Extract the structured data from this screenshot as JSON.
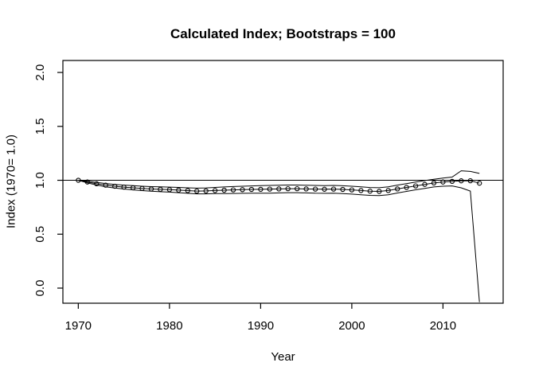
{
  "window": {
    "type": "r-graphics-plot"
  },
  "colors": {
    "foreground": "#000000",
    "background": "#ffffff"
  },
  "chart_data": {
    "type": "line",
    "title": "Calculated Index; Bootstraps = 100",
    "xlabel": "Year",
    "ylabel": "Index (1970= 1.0)",
    "x_ticks": [
      1970,
      1980,
      1990,
      2000,
      2010
    ],
    "y_ticks": [
      "0.0",
      "0.5",
      "1.0",
      "1.5",
      "2.0"
    ],
    "y_tick_values": [
      0.0,
      0.5,
      1.0,
      1.5,
      2.0
    ],
    "xlim": [
      1968.31,
      2016.6
    ],
    "ylim": [
      -0.1402,
      2.1111
    ],
    "grid": "off",
    "legend": "none",
    "reference_line_y": 1.0,
    "marker": "open-circle",
    "x": [
      1970,
      1971,
      1972,
      1973,
      1974,
      1975,
      1976,
      1977,
      1978,
      1979,
      1980,
      1981,
      1982,
      1983,
      1984,
      1985,
      1986,
      1987,
      1988,
      1989,
      1990,
      1991,
      1992,
      1993,
      1994,
      1995,
      1996,
      1997,
      1998,
      1999,
      2000,
      2001,
      2002,
      2003,
      2004,
      2005,
      2006,
      2007,
      2008,
      2009,
      2010,
      2011,
      2012,
      2013,
      2014
    ],
    "series": [
      {
        "name": "index_estimate",
        "values": [
          1.0,
          0.984,
          0.968,
          0.955,
          0.945,
          0.937,
          0.93,
          0.924,
          0.919,
          0.916,
          0.913,
          0.909,
          0.904,
          0.9,
          0.901,
          0.905,
          0.908,
          0.911,
          0.913,
          0.915,
          0.916,
          0.918,
          0.92,
          0.922,
          0.922,
          0.92,
          0.918,
          0.917,
          0.918,
          0.915,
          0.911,
          0.905,
          0.899,
          0.897,
          0.905,
          0.92,
          0.934,
          0.948,
          0.962,
          0.975,
          0.984,
          0.99,
          0.995,
          0.996,
          0.973
        ]
      },
      {
        "name": "upper_bootstrap_band",
        "values": [
          1.0,
          0.992,
          0.98,
          0.97,
          0.962,
          0.955,
          0.95,
          0.945,
          0.941,
          0.939,
          0.937,
          0.934,
          0.93,
          0.927,
          0.929,
          0.934,
          0.938,
          0.942,
          0.945,
          0.948,
          0.95,
          0.952,
          0.954,
          0.956,
          0.956,
          0.954,
          0.952,
          0.951,
          0.952,
          0.949,
          0.945,
          0.939,
          0.933,
          0.931,
          0.94,
          0.955,
          0.969,
          0.983,
          0.997,
          1.01,
          1.02,
          1.03,
          1.088,
          1.082,
          1.064
        ]
      },
      {
        "name": "lower_bootstrap_band",
        "values": [
          1.0,
          0.976,
          0.956,
          0.94,
          0.928,
          0.919,
          0.911,
          0.904,
          0.898,
          0.894,
          0.89,
          0.885,
          0.879,
          0.874,
          0.874,
          0.876,
          0.877,
          0.878,
          0.879,
          0.88,
          0.88,
          0.881,
          0.883,
          0.885,
          0.885,
          0.883,
          0.88,
          0.879,
          0.88,
          0.877,
          0.872,
          0.866,
          0.86,
          0.858,
          0.866,
          0.882,
          0.897,
          0.912,
          0.925,
          0.938,
          0.945,
          0.948,
          0.93,
          0.9,
          -0.13
        ]
      }
    ]
  }
}
